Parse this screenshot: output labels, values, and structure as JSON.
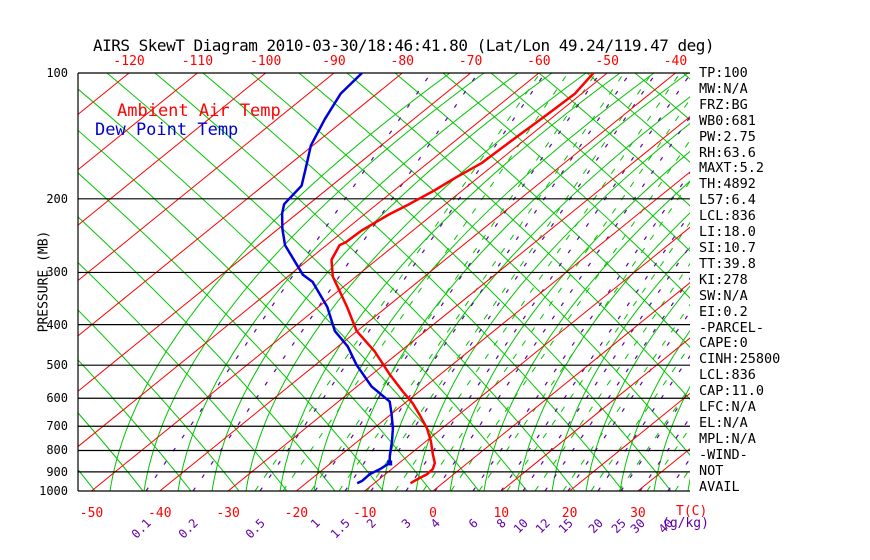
{
  "title": "AIRS SkewT Diagram 2010-03-30/18:46:41.80 (Lat/Lon 49.24/119.47 deg)",
  "legend": {
    "ambient": "Ambient Air Temp",
    "dewpoint": "Dew Point Temp"
  },
  "y_axis": {
    "title": "PRESSURE (MB)",
    "ticks": [
      100,
      200,
      300,
      400,
      500,
      600,
      700,
      800,
      900,
      1000
    ]
  },
  "x_axis": {
    "unit": "T(C)",
    "top_ticks": [
      -120,
      -110,
      -100,
      -90,
      -80,
      -70,
      -60,
      -50,
      -40
    ],
    "bottom_ticks": [
      -50,
      -40,
      -30,
      -20,
      -10,
      0,
      10,
      20,
      30
    ]
  },
  "mixing_ratio": {
    "unit": "(g/kg)",
    "ticks": [
      0.1,
      0.2,
      0.5,
      1,
      1.5,
      2,
      3,
      4,
      6,
      8,
      10,
      12,
      15,
      20,
      25,
      30,
      40
    ]
  },
  "stats": [
    "TP:100",
    "MW:N/A",
    "FRZ:BG",
    "WB0:681",
    "PW:2.75",
    "RH:63.6",
    "MAXT:5.2",
    "TH:4892",
    "L57:6.4",
    "LCL:836",
    "LI:18.0",
    "SI:10.7",
    "TT:39.8",
    "KI:278",
    "SW:N/A",
    "EI:0.2",
    "-PARCEL-",
    "CAPE:0",
    "CINH:25800",
    "LCL:836",
    "CAP:11.0",
    "LFC:N/A",
    "EL:N/A",
    "MPL:N/A",
    "-WIND-",
    "NOT",
    "AVAIL"
  ],
  "colors": {
    "temperature": "#ff0000",
    "dewpoint": "#0000dd",
    "isotherm": "#ff0000",
    "adiabat": "#00c400",
    "mixing_ratio": "#6000a8",
    "frame": "#000000",
    "background": "#ffffff"
  },
  "chart_data": {
    "type": "line",
    "title": "AIRS SkewT Diagram 2010-03-30/18:46:41.80 (Lat/Lon 49.24/119.47 deg)",
    "xlabel": "T(C)",
    "ylabel": "PRESSURE (MB)",
    "y_scale": "log",
    "ylim": [
      1000,
      100
    ],
    "x_skew": "skew-T projection, isotherms slope up-right",
    "isotherm_step_C": 10,
    "series": [
      {
        "name": "Ambient Air Temp",
        "color": "#ff0000",
        "points_p_t": [
          [
            100,
            -52
          ],
          [
            112,
            -51
          ],
          [
            126,
            -51.3
          ],
          [
            147,
            -51.8
          ],
          [
            164,
            -52.1
          ],
          [
            178,
            -53.3
          ],
          [
            191,
            -54.1
          ],
          [
            206,
            -55.3
          ],
          [
            218,
            -56.4
          ],
          [
            238,
            -57.5
          ],
          [
            254,
            -57.7
          ],
          [
            258,
            -58.1
          ],
          [
            280,
            -56.6
          ],
          [
            307,
            -53.4
          ],
          [
            320,
            -51.5
          ],
          [
            363,
            -45.8
          ],
          [
            414,
            -40.1
          ],
          [
            464,
            -33.7
          ],
          [
            526,
            -27.4
          ],
          [
            578,
            -22.4
          ],
          [
            617,
            -18.8
          ],
          [
            659,
            -15.6
          ],
          [
            708,
            -12.2
          ],
          [
            760,
            -9.3
          ],
          [
            816,
            -6.7
          ],
          [
            857,
            -4.8
          ],
          [
            886,
            -4.0
          ],
          [
            912,
            -3.9
          ],
          [
            936,
            -4.4
          ],
          [
            958,
            -4.7
          ]
        ]
      },
      {
        "name": "Dew Point Temp",
        "color": "#0000dd",
        "marker_p_t": [
          857,
          -11.4
        ],
        "points_p_t": [
          [
            100,
            -85.9
          ],
          [
            112,
            -85.3
          ],
          [
            129,
            -83.0
          ],
          [
            149,
            -80.3
          ],
          [
            166,
            -77.4
          ],
          [
            186,
            -74.4
          ],
          [
            206,
            -73.6
          ],
          [
            217,
            -72.2
          ],
          [
            236,
            -69.4
          ],
          [
            258,
            -66.1
          ],
          [
            304,
            -58.1
          ],
          [
            316,
            -55.4
          ],
          [
            363,
            -48.7
          ],
          [
            414,
            -43.3
          ],
          [
            451,
            -38.6
          ],
          [
            499,
            -34.0
          ],
          [
            562,
            -27.9
          ],
          [
            611,
            -22.5
          ],
          [
            652,
            -20.1
          ],
          [
            708,
            -17.2
          ],
          [
            760,
            -15.0
          ],
          [
            826,
            -12.6
          ],
          [
            857,
            -11.4
          ],
          [
            886,
            -11.7
          ],
          [
            912,
            -12.3
          ],
          [
            946,
            -12.2
          ],
          [
            958,
            -12.5
          ]
        ]
      }
    ]
  }
}
